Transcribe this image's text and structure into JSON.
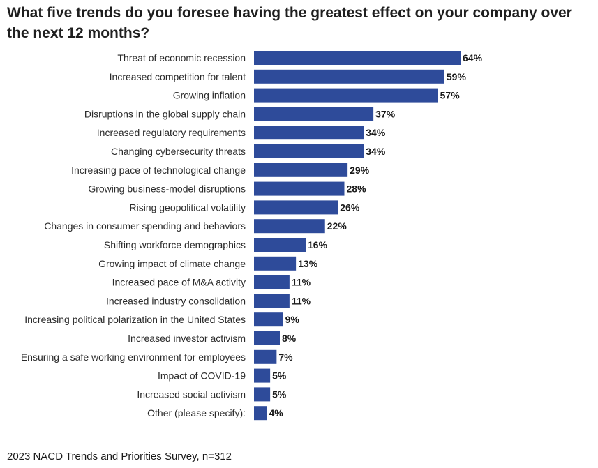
{
  "chart_data": {
    "type": "bar",
    "orientation": "horizontal",
    "title": "What five trends do you foresee having the greatest effect on your company over the next 12 months?",
    "source": "2023 NACD Trends and Priorities Survey, n=312",
    "bar_color": "#2e4b9a",
    "value_suffix": "%",
    "xlim": [
      0,
      64
    ],
    "grid": false,
    "categories": [
      "Threat of economic recession",
      "Increased competition for talent",
      "Growing inflation",
      "Disruptions in the global supply chain",
      "Increased regulatory requirements",
      "Changing cybersecurity threats",
      "Increasing pace of technological change",
      "Growing business-model disruptions",
      "Rising geopolitical volatility",
      "Changes in consumer spending and behaviors",
      "Shifting workforce demographics",
      "Growing impact of climate change",
      "Increased pace of M&A activity",
      "Increased industry consolidation",
      "Increasing political polarization in the United States",
      "Increased investor activism",
      "Ensuring a safe working environment for employees",
      "Impact of COVID-19",
      "Increased social activism",
      "Other (please specify):"
    ],
    "values": [
      64,
      59,
      57,
      37,
      34,
      34,
      29,
      28,
      26,
      22,
      16,
      13,
      11,
      11,
      9,
      8,
      7,
      5,
      5,
      4
    ]
  }
}
